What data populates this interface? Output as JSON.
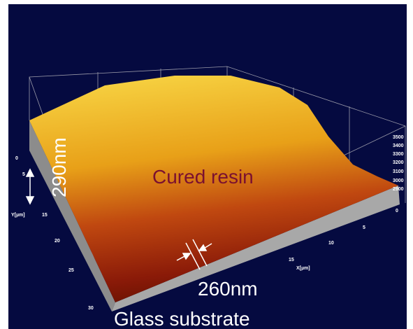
{
  "annotations": {
    "height": "290nm",
    "material": "Cured resin",
    "width": "260nm",
    "substrate": "Glass substrate"
  },
  "y_axis": {
    "label": "Y[µm]",
    "ticks": [
      "0",
      "5",
      "15",
      "20",
      "25",
      "30"
    ]
  },
  "x_axis": {
    "label": "X[µm]",
    "ticks": [
      "0",
      "5",
      "10",
      "15"
    ]
  },
  "z_axis": {
    "ticks": [
      "2900",
      "3000",
      "3100",
      "3200",
      "3300",
      "3400",
      "3500"
    ]
  }
}
